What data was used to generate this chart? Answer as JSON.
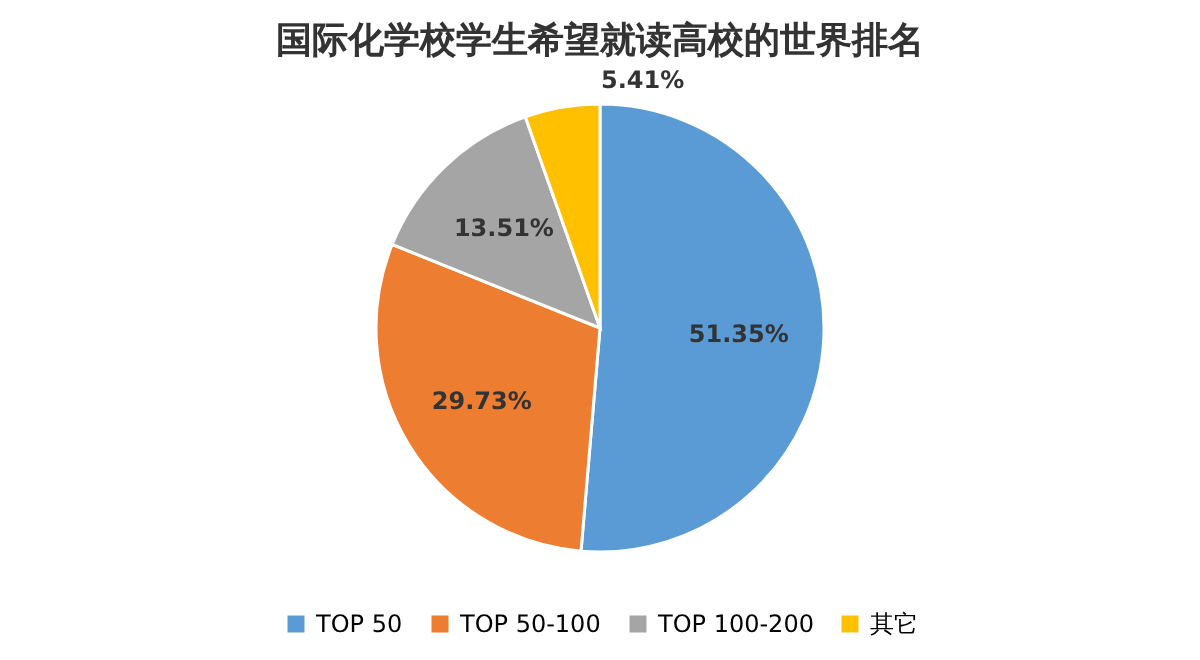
{
  "chart_data": {
    "type": "pie",
    "title": "国际化学校学生希望就读高校的世界排名",
    "categories": [
      "TOP 50",
      "TOP 50-100",
      "TOP 100-200",
      "其它"
    ],
    "values": [
      51.35,
      29.73,
      13.51,
      5.41
    ],
    "value_labels": [
      "51.35%",
      "29.73%",
      "13.51%",
      "5.41%"
    ],
    "colors": [
      "#5b9bd5",
      "#ed7d31",
      "#a5a5a5",
      "#ffc000"
    ],
    "legend": "bottom"
  }
}
